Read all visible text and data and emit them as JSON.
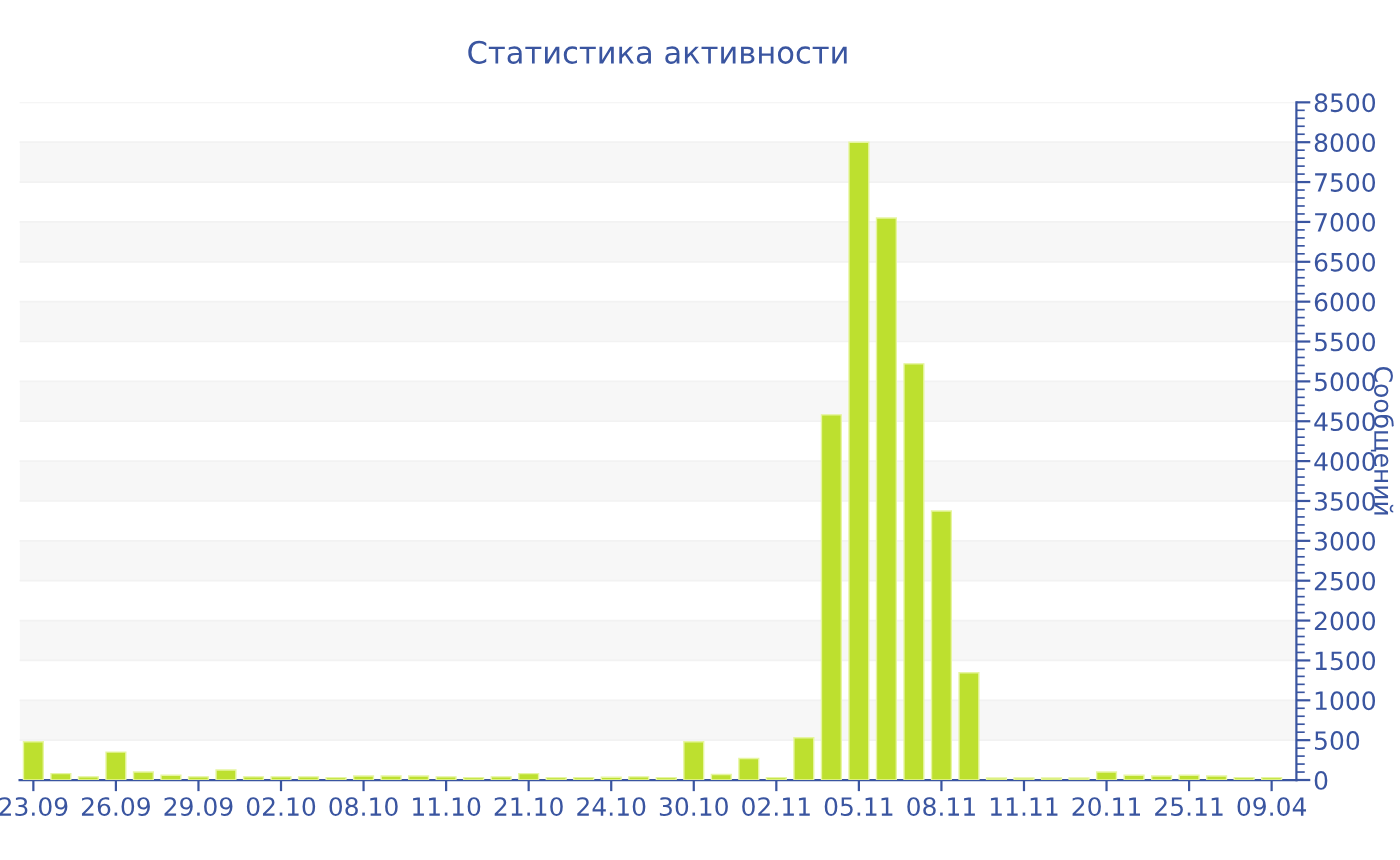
{
  "chart_data": {
    "type": "bar",
    "title": "Статистика активности",
    "ylabel": "Сообщений",
    "categories": [
      "23.09",
      null,
      null,
      "26.09",
      null,
      null,
      "29.09",
      null,
      null,
      "02.10",
      null,
      null,
      "08.10",
      null,
      null,
      "11.10",
      null,
      null,
      "21.10",
      null,
      null,
      "24.10",
      null,
      null,
      "30.10",
      null,
      null,
      "02.11",
      null,
      null,
      "05.11",
      null,
      null,
      "08.11",
      null,
      null,
      "11.11",
      null,
      null,
      "20.11",
      null,
      null,
      "25.11",
      null,
      null,
      "09.04"
    ],
    "values": [
      480,
      80,
      40,
      350,
      100,
      60,
      40,
      125,
      40,
      40,
      40,
      30,
      50,
      50,
      50,
      40,
      30,
      40,
      80,
      30,
      30,
      35,
      40,
      30,
      480,
      70,
      270,
      30,
      530,
      4580,
      8000,
      7050,
      5220,
      3375,
      1345,
      25,
      25,
      25,
      25,
      100,
      60,
      50,
      60,
      50,
      30,
      30
    ],
    "color": "#bde02f",
    "ylim": [
      0,
      8500
    ],
    "yticks": [
      0,
      500,
      1000,
      1500,
      2000,
      2500,
      3000,
      3500,
      4000,
      4500,
      5000,
      5500,
      6000,
      6500,
      7000,
      7500,
      8000,
      8500
    ],
    "grid": true,
    "legend": false
  }
}
